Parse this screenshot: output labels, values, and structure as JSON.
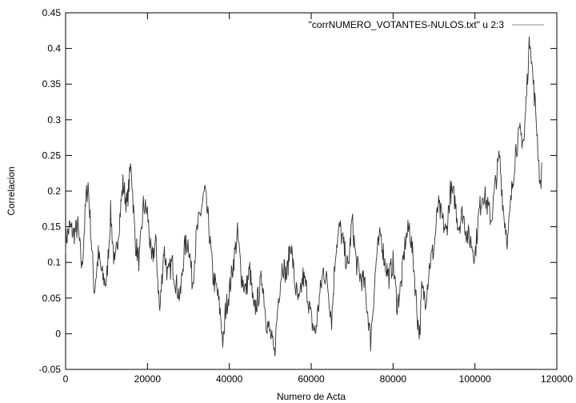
{
  "chart_data": {
    "type": "line",
    "title": "",
    "xlabel": "Numero de Acta",
    "ylabel": "Correlacion",
    "xlim": [
      0,
      120000
    ],
    "ylim": [
      -0.05,
      0.45
    ],
    "x_ticks": [
      0,
      20000,
      40000,
      60000,
      80000,
      100000,
      120000
    ],
    "x_tick_labels": [
      "0",
      "20000",
      "40000",
      "60000",
      "80000",
      "100000",
      "120000"
    ],
    "y_ticks": [
      -0.05,
      0,
      0.05,
      0.1,
      0.15,
      0.2,
      0.25,
      0.3,
      0.35,
      0.4,
      0.45
    ],
    "y_tick_labels": [
      "-0.05",
      "0",
      "0.05",
      "0.1",
      "0.15",
      "0.2",
      "0.25",
      "0.3",
      "0.35",
      "0.4",
      "0.45"
    ],
    "grid": false,
    "legend_position": "top-right",
    "series": [
      {
        "name": "\"corrNUMERO_VOTANTES-NULOS.txt\" u 2:3",
        "color": "#333333",
        "points": [
          [
            0,
            0.13
          ],
          [
            1000,
            0.15
          ],
          [
            2000,
            0.14
          ],
          [
            3000,
            0.15
          ],
          [
            4000,
            0.09
          ],
          [
            5000,
            0.19
          ],
          [
            5500,
            0.21
          ],
          [
            6000,
            0.16
          ],
          [
            7000,
            0.06
          ],
          [
            8000,
            0.11
          ],
          [
            9000,
            0.08
          ],
          [
            10000,
            0.07
          ],
          [
            11000,
            0.17
          ],
          [
            12000,
            0.09
          ],
          [
            13000,
            0.15
          ],
          [
            14000,
            0.21
          ],
          [
            15000,
            0.18
          ],
          [
            16000,
            0.24
          ],
          [
            17000,
            0.13
          ],
          [
            18000,
            0.1
          ],
          [
            19000,
            0.18
          ],
          [
            20000,
            0.17
          ],
          [
            21000,
            0.1
          ],
          [
            22000,
            0.13
          ],
          [
            23000,
            0.03
          ],
          [
            24000,
            0.12
          ],
          [
            25000,
            0.08
          ],
          [
            26000,
            0.1
          ],
          [
            27000,
            0.07
          ],
          [
            28000,
            0.05
          ],
          [
            29000,
            0.12
          ],
          [
            30000,
            0.13
          ],
          [
            31000,
            0.07
          ],
          [
            32000,
            0.14
          ],
          [
            33000,
            0.17
          ],
          [
            34000,
            0.2
          ],
          [
            35000,
            0.15
          ],
          [
            36000,
            0.08
          ],
          [
            37000,
            0.06
          ],
          [
            38000,
            0.02
          ],
          [
            38500,
            -0.02
          ],
          [
            39000,
            0.03
          ],
          [
            40000,
            0.06
          ],
          [
            41000,
            0.1
          ],
          [
            42000,
            0.14
          ],
          [
            43000,
            0.08
          ],
          [
            44000,
            0.06
          ],
          [
            45000,
            0.09
          ],
          [
            46000,
            0.03
          ],
          [
            47000,
            0.05
          ],
          [
            48000,
            0.08
          ],
          [
            49000,
            0.02
          ],
          [
            50000,
            0.0
          ],
          [
            51000,
            -0.03
          ],
          [
            52000,
            0.05
          ],
          [
            53000,
            0.1
          ],
          [
            54000,
            0.08
          ],
          [
            55000,
            0.13
          ],
          [
            56000,
            0.07
          ],
          [
            57000,
            0.04
          ],
          [
            58000,
            0.08
          ],
          [
            59000,
            0.06
          ],
          [
            60000,
            0.02
          ],
          [
            61000,
            0.0
          ],
          [
            62000,
            0.05
          ],
          [
            63000,
            0.09
          ],
          [
            64000,
            0.07
          ],
          [
            65000,
            0.02
          ],
          [
            66000,
            0.12
          ],
          [
            67000,
            0.15
          ],
          [
            68000,
            0.12
          ],
          [
            69000,
            0.09
          ],
          [
            70000,
            0.16
          ],
          [
            71000,
            0.1
          ],
          [
            72000,
            0.08
          ],
          [
            73000,
            0.07
          ],
          [
            74000,
            0.02
          ],
          [
            74500,
            -0.01
          ],
          [
            75000,
            0.03
          ],
          [
            76000,
            0.11
          ],
          [
            77000,
            0.14
          ],
          [
            78000,
            0.1
          ],
          [
            79000,
            0.08
          ],
          [
            80000,
            0.1
          ],
          [
            81000,
            0.04
          ],
          [
            82000,
            0.07
          ],
          [
            83000,
            0.13
          ],
          [
            84000,
            0.15
          ],
          [
            85000,
            0.1
          ],
          [
            86000,
            0.02
          ],
          [
            86500,
            0.0
          ],
          [
            87000,
            0.06
          ],
          [
            88000,
            0.05
          ],
          [
            89000,
            0.1
          ],
          [
            90000,
            0.12
          ],
          [
            91000,
            0.18
          ],
          [
            92000,
            0.16
          ],
          [
            93000,
            0.14
          ],
          [
            94000,
            0.2
          ],
          [
            95000,
            0.19
          ],
          [
            96000,
            0.15
          ],
          [
            97000,
            0.17
          ],
          [
            98000,
            0.14
          ],
          [
            99000,
            0.13
          ],
          [
            100000,
            0.11
          ],
          [
            101000,
            0.17
          ],
          [
            102000,
            0.2
          ],
          [
            103000,
            0.18
          ],
          [
            104000,
            0.16
          ],
          [
            105000,
            0.21
          ],
          [
            106000,
            0.25
          ],
          [
            107000,
            0.17
          ],
          [
            108000,
            0.13
          ],
          [
            109000,
            0.2
          ],
          [
            110000,
            0.26
          ],
          [
            111000,
            0.28
          ],
          [
            112000,
            0.27
          ],
          [
            113000,
            0.38
          ],
          [
            113500,
            0.42
          ],
          [
            114000,
            0.37
          ],
          [
            115000,
            0.3
          ],
          [
            116000,
            0.2
          ],
          [
            116300,
            0.24
          ]
        ]
      }
    ]
  }
}
